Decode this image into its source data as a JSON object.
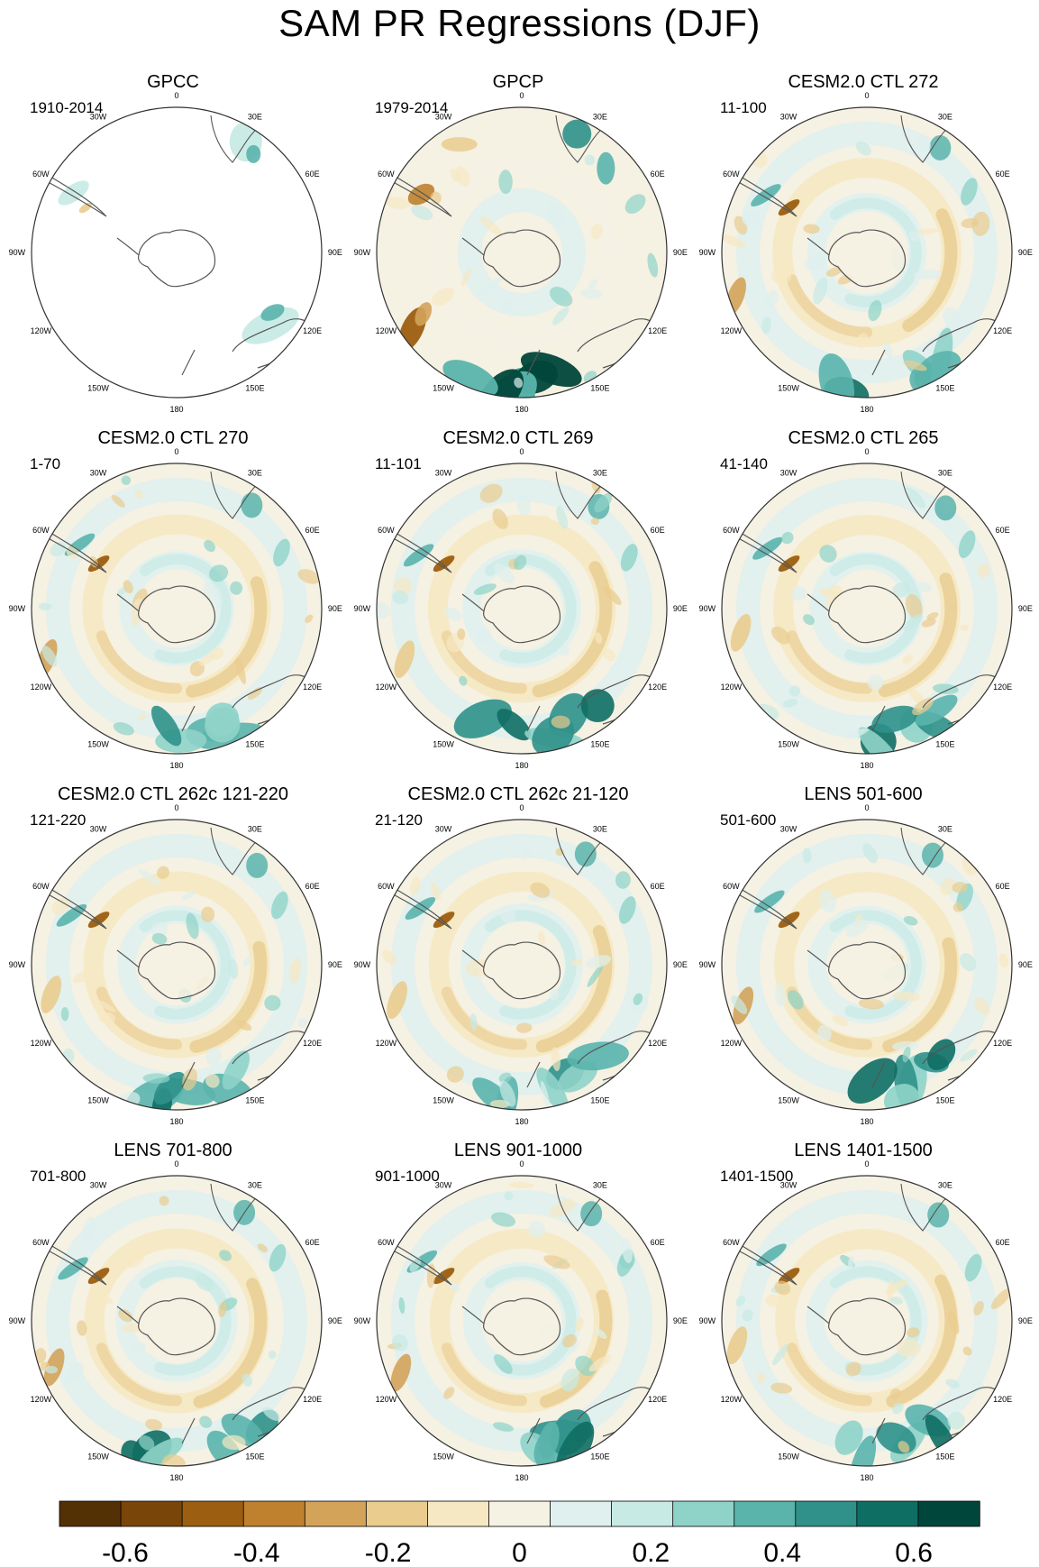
{
  "title": "SAM PR Regressions (DJF)",
  "colors": {
    "levels": [
      "#543005",
      "#7a4509",
      "#9c5e10",
      "#bf812d",
      "#d3a35a",
      "#e9cc8e",
      "#f6e8c3",
      "#f5f1e3",
      "#e0f0ee",
      "#c7eae5",
      "#8fd3c8",
      "#5ab4ac",
      "#2f918a",
      "#0f6e63",
      "#01463a"
    ],
    "land": "#555555",
    "ring": "#333333"
  },
  "longitude_labels": [
    "0",
    "30E",
    "60E",
    "90E",
    "120E",
    "150E",
    "180",
    "150W",
    "120W",
    "90W",
    "60W",
    "30W"
  ],
  "panels": [
    {
      "title": "GPCC",
      "period": "1910-2014",
      "kind": "gpcc"
    },
    {
      "title": "GPCP",
      "period": "1979-2014",
      "kind": "obs"
    },
    {
      "title": "CESM2.0 CTL 272",
      "period": "11-100",
      "kind": "model"
    },
    {
      "title": "CESM2.0 CTL 270",
      "period": "1-70",
      "kind": "model"
    },
    {
      "title": "CESM2.0 CTL 269",
      "period": "11-101",
      "kind": "model"
    },
    {
      "title": "CESM2.0 CTL 265",
      "period": "41-140",
      "kind": "model"
    },
    {
      "title": "CESM2.0 CTL 262c 121-220",
      "period": "121-220",
      "kind": "model"
    },
    {
      "title": "CESM2.0 CTL 262c 21-120",
      "period": "21-120",
      "kind": "model"
    },
    {
      "title": "LENS 501-600",
      "period": "501-600",
      "kind": "model"
    },
    {
      "title": "LENS 701-800",
      "period": "701-800",
      "kind": "model"
    },
    {
      "title": "LENS 901-1000",
      "period": "901-1000",
      "kind": "model"
    },
    {
      "title": "LENS 1401-1500",
      "period": "1401-1500",
      "kind": "model"
    }
  ],
  "colorbar": {
    "min": -0.7,
    "max": 0.7,
    "step": 0.1,
    "tick_values": [
      -0.6,
      -0.4,
      -0.2,
      0,
      0.2,
      0.4,
      0.6
    ],
    "tick_labels": [
      "-0.6",
      "-0.4",
      "-0.2",
      "0",
      "0.2",
      "0.4",
      "0.6"
    ]
  }
}
